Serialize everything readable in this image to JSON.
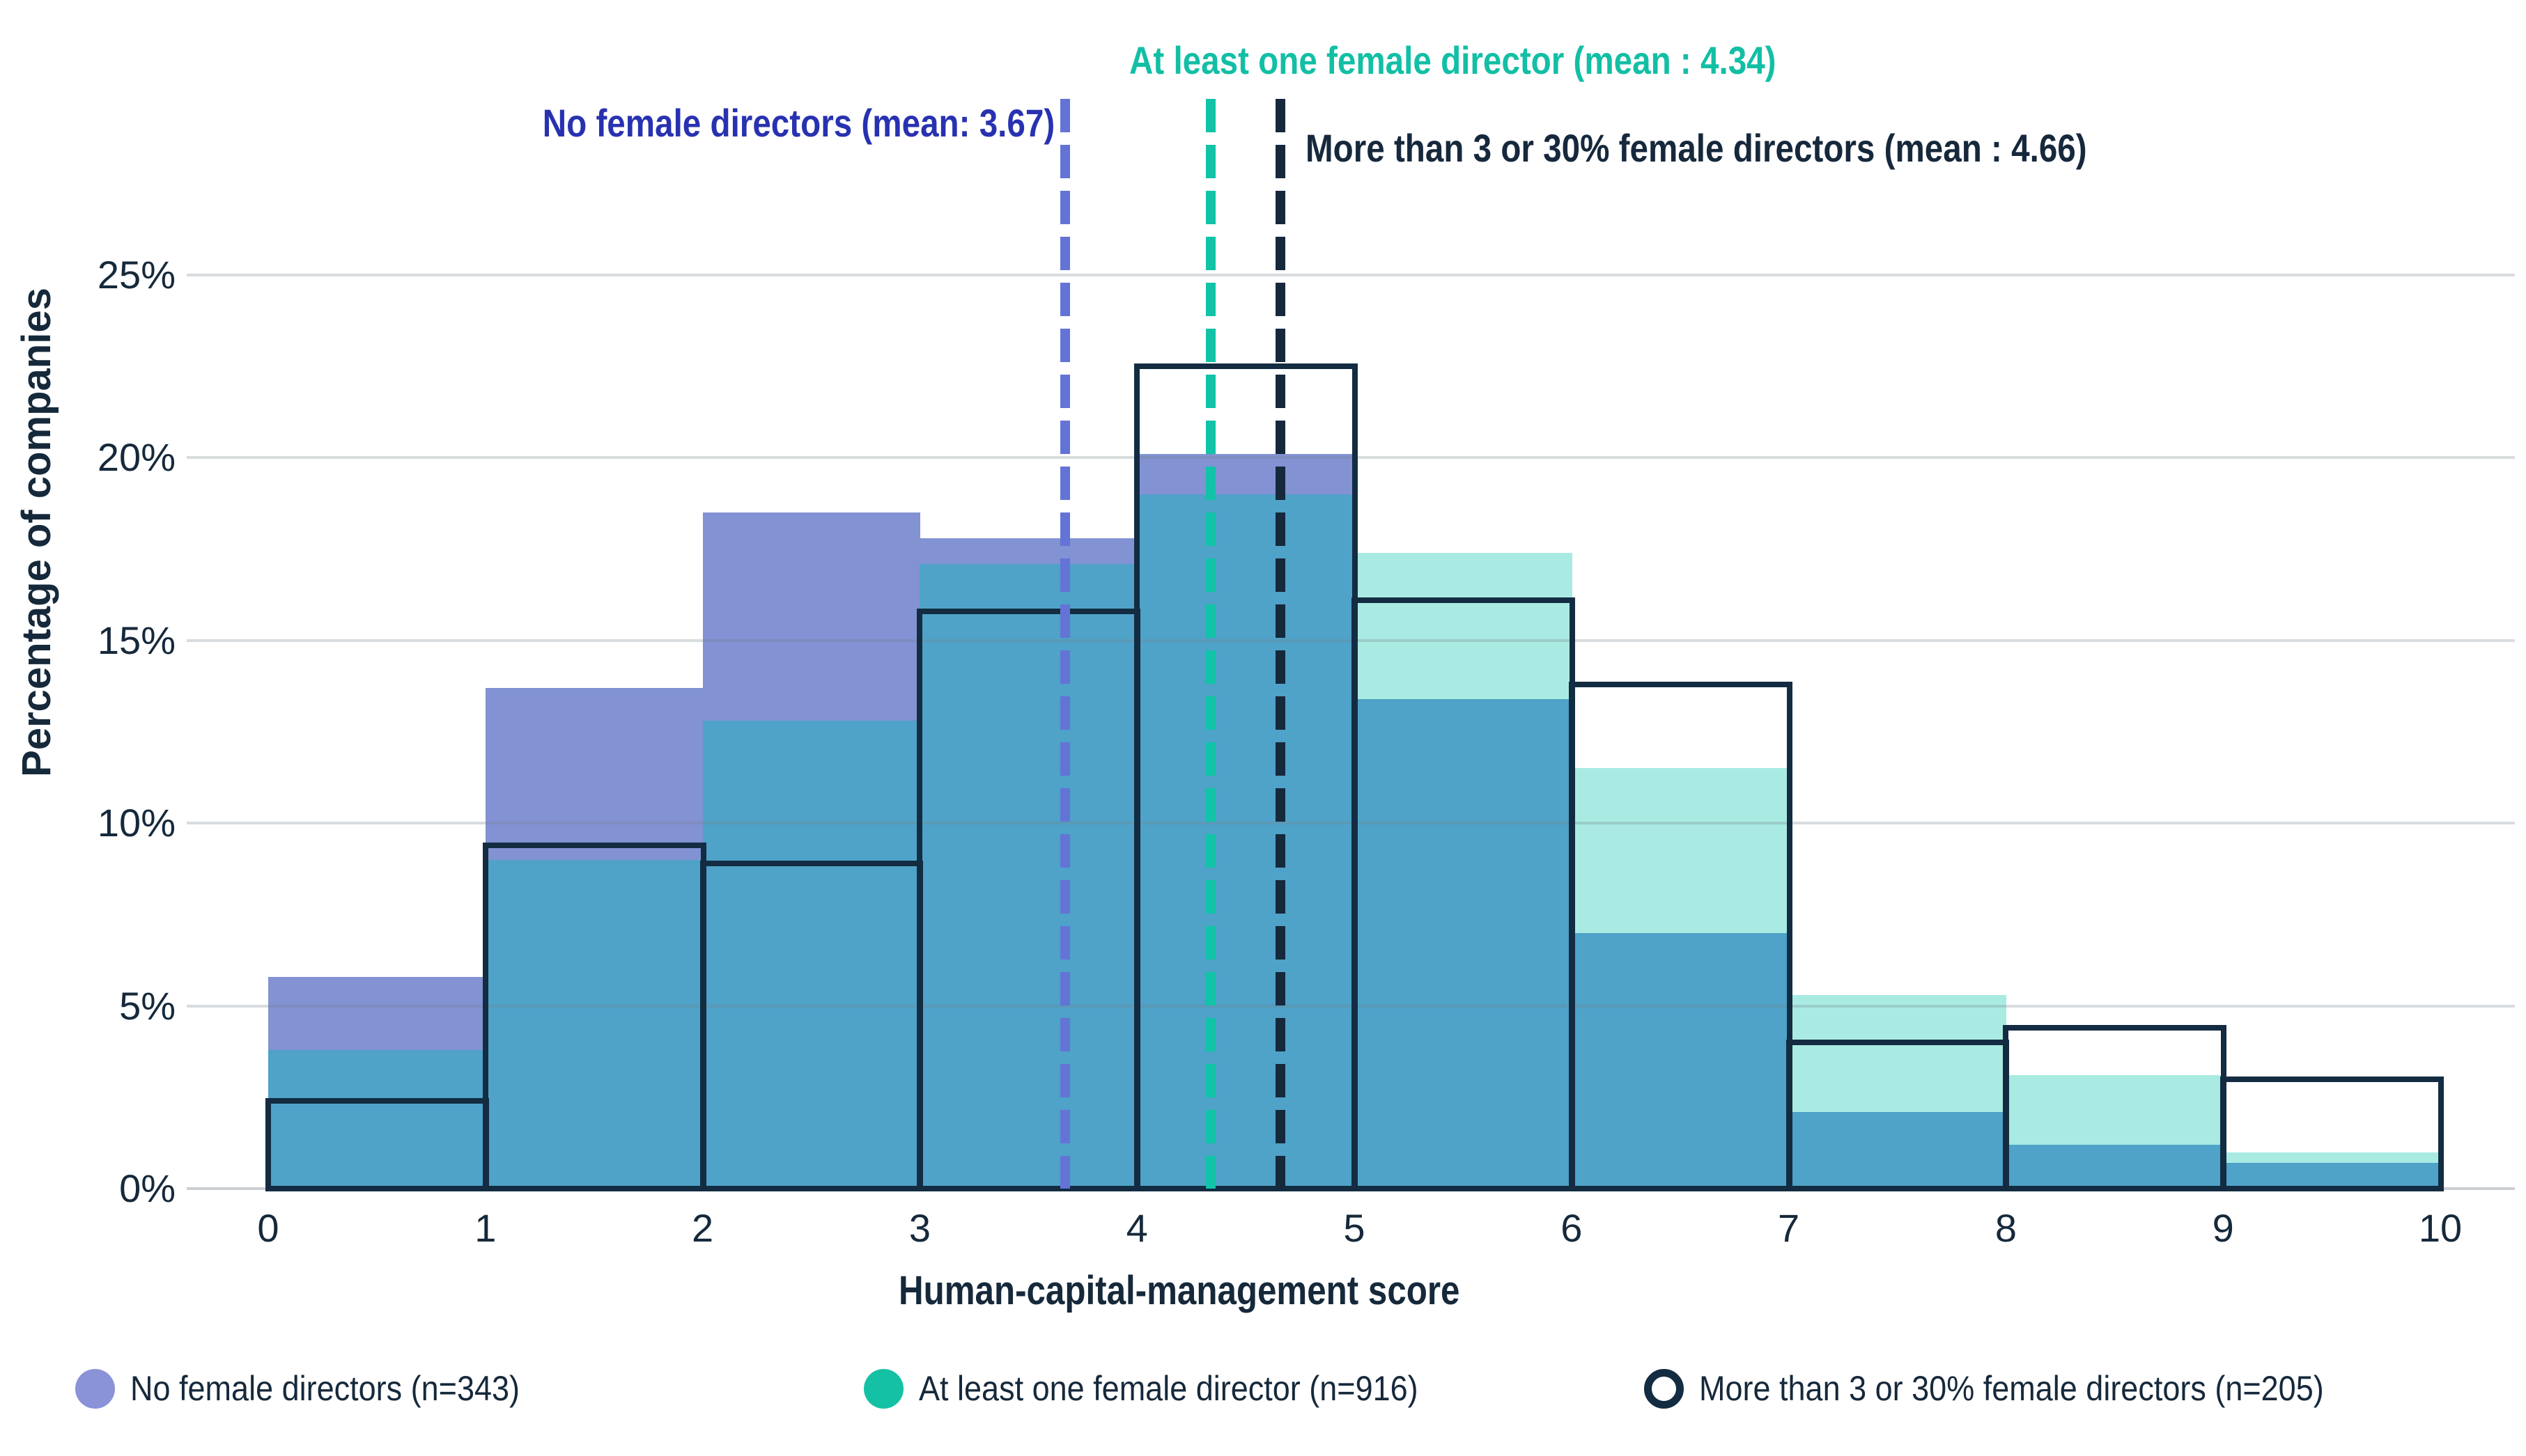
{
  "chart_data": {
    "type": "bar",
    "subtype": "overlapping_histogram",
    "title": "",
    "xlabel": "Human-capital-management score",
    "ylabel": "Percentage of companies",
    "x_ticks": [
      "0",
      "1",
      "2",
      "3",
      "4",
      "5",
      "6",
      "7",
      "8",
      "9",
      "10"
    ],
    "y_tick_labels": [
      "0%",
      "5%",
      "10%",
      "15%",
      "20%",
      "25%"
    ],
    "y_tick_values": [
      0,
      5,
      10,
      15,
      20,
      25
    ],
    "ylim": [
      0,
      25
    ],
    "xlim": [
      0,
      10
    ],
    "bin_edges": [
      0,
      1,
      2,
      3,
      4,
      5,
      6,
      7,
      8,
      9,
      10
    ],
    "grid": "horizontal",
    "legend_position": "bottom",
    "overlap_fill_color": "#4FA2C8",
    "series": [
      {
        "id": "no_female",
        "name": "No female directors",
        "n": 343,
        "mean": 3.67,
        "style": "fill",
        "fill_color": "#8292D3",
        "legend_label": "No female directors (n=343)",
        "legend_marker_color": "#8A92D8",
        "values": [
          5.8,
          13.7,
          18.5,
          17.8,
          20.1,
          13.4,
          7.0,
          2.1,
          1.2,
          0.7
        ]
      },
      {
        "id": "at_least_one",
        "name": "At least one female director",
        "n": 916,
        "mean": 4.34,
        "style": "fill",
        "fill_color": "#A9EBE2",
        "legend_label": "At least one female director (n=916)",
        "legend_marker_color": "#15C1A5",
        "values": [
          3.8,
          9.0,
          12.8,
          17.1,
          19.0,
          17.4,
          11.5,
          5.3,
          3.1,
          1.0
        ]
      },
      {
        "id": "more_than_3",
        "name": "More than 3 or 30% female directors",
        "n": 205,
        "mean": 4.66,
        "style": "outline",
        "outline_color": "#132C42",
        "legend_label": "More than 3 or 30% female directors (n=205)",
        "legend_marker_color": "#132C42",
        "values": [
          2.4,
          9.4,
          8.9,
          15.8,
          22.5,
          16.1,
          13.8,
          4.0,
          4.4,
          3.0
        ]
      }
    ],
    "mean_lines": [
      {
        "series": "no_female",
        "x": 3.67,
        "color": "#6374D6",
        "label": "No female directors (mean: 3.67)",
        "label_color": "#2832B0"
      },
      {
        "series": "at_least_one",
        "x": 4.34,
        "color": "#12C3A8",
        "label": "At least one female director (mean : 4.34)",
        "label_color": "#12BFA5"
      },
      {
        "series": "more_than_3",
        "x": 4.66,
        "color": "#16283C",
        "label": "More than 3 or 30% female directors (mean : 4.66)",
        "label_color": "#16283C"
      }
    ]
  }
}
